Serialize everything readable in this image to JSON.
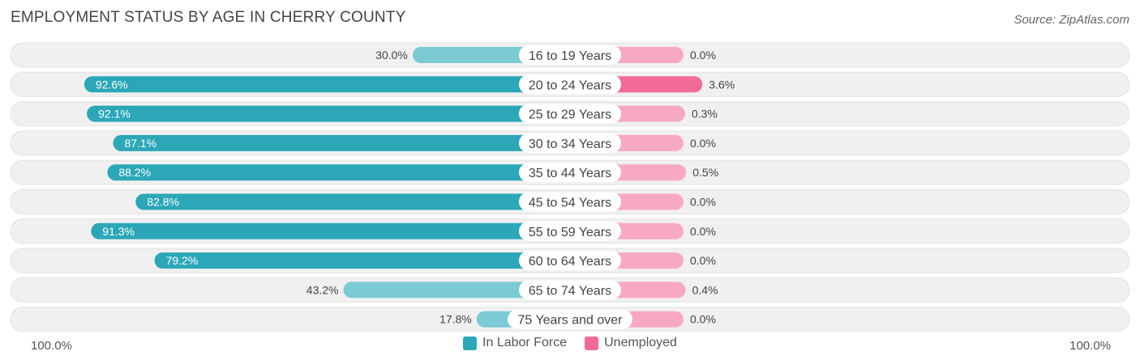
{
  "title": "EMPLOYMENT STATUS BY AGE IN CHERRY COUNTY",
  "source": "Source: ZipAtlas.com",
  "colors": {
    "labor_strong": "#2ba7b8",
    "labor_light": "#7ccad3",
    "unemp_strong": "#f26b96",
    "unemp_light": "#f7a9c3",
    "row_bg": "#f0f0f0"
  },
  "chart_data": {
    "type": "bar",
    "categories": [
      "16 to 19 Years",
      "20 to 24 Years",
      "25 to 29 Years",
      "30 to 34 Years",
      "35 to 44 Years",
      "45 to 54 Years",
      "55 to 59 Years",
      "60 to 64 Years",
      "65 to 74 Years",
      "75 Years and over"
    ],
    "series": [
      {
        "name": "In Labor Force",
        "values": [
          30.0,
          92.6,
          92.1,
          87.1,
          88.2,
          82.8,
          91.3,
          79.2,
          43.2,
          17.8
        ],
        "labels": [
          "30.0%",
          "92.6%",
          "92.1%",
          "87.1%",
          "88.2%",
          "82.8%",
          "91.3%",
          "79.2%",
          "43.2%",
          "17.8%"
        ]
      },
      {
        "name": "Unemployed",
        "values": [
          0.0,
          3.6,
          0.3,
          0.0,
          0.5,
          0.0,
          0.0,
          0.0,
          0.4,
          0.0
        ],
        "labels": [
          "0.0%",
          "3.6%",
          "0.3%",
          "0.0%",
          "0.5%",
          "0.0%",
          "0.0%",
          "0.0%",
          "0.4%",
          "0.0%"
        ]
      }
    ],
    "xlim": [
      0,
      100
    ],
    "axis_left_label": "100.0%",
    "axis_right_label": "100.0%",
    "legend_position": "bottom-center"
  }
}
